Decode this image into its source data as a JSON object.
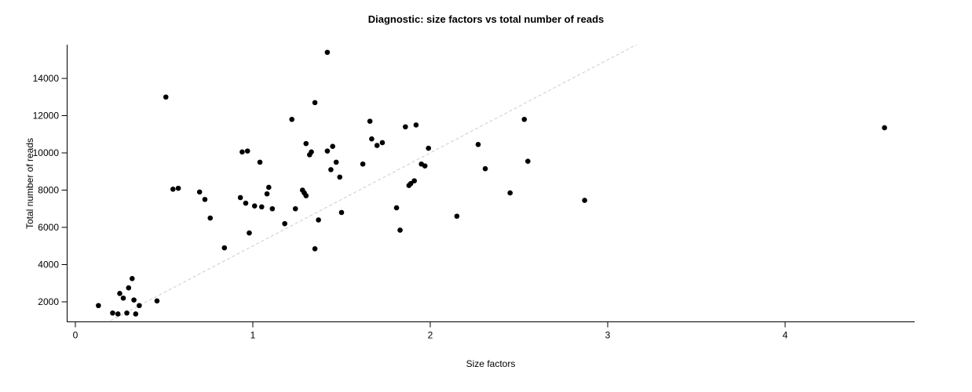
{
  "chart_data": {
    "type": "scatter",
    "title": "Diagnostic: size factors vs total number of reads",
    "xlabel": "Size factors",
    "ylabel": "Total number of reads",
    "x_ticks": [
      0,
      1,
      2,
      3,
      4
    ],
    "y_ticks": [
      2000,
      4000,
      6000,
      8000,
      10000,
      12000,
      14000
    ],
    "xlim": [
      -0.05,
      4.73
    ],
    "ylim": [
      950,
      15810
    ],
    "grid": false,
    "legend": "none",
    "point_color": "#000000",
    "axis_color": "#000000",
    "reference_line": {
      "slope": 5000,
      "intercept": 0,
      "style": "dashed",
      "color": "#cccccc"
    },
    "points": [
      [
        0.13,
        1800
      ],
      [
        0.21,
        1400
      ],
      [
        0.24,
        1350
      ],
      [
        0.25,
        2450
      ],
      [
        0.27,
        2200
      ],
      [
        0.29,
        1400
      ],
      [
        0.3,
        2750
      ],
      [
        0.32,
        3250
      ],
      [
        0.33,
        2100
      ],
      [
        0.34,
        1350
      ],
      [
        0.36,
        1800
      ],
      [
        0.46,
        2050
      ],
      [
        0.51,
        13000
      ],
      [
        0.55,
        8050
      ],
      [
        0.58,
        8100
      ],
      [
        0.7,
        7900
      ],
      [
        0.73,
        7500
      ],
      [
        0.76,
        6500
      ],
      [
        0.84,
        4900
      ],
      [
        0.93,
        7600
      ],
      [
        0.94,
        10050
      ],
      [
        0.97,
        10100
      ],
      [
        0.96,
        7300
      ],
      [
        0.98,
        5700
      ],
      [
        1.01,
        7150
      ],
      [
        1.04,
        9500
      ],
      [
        1.05,
        7100
      ],
      [
        1.08,
        7800
      ],
      [
        1.09,
        8150
      ],
      [
        1.11,
        7000
      ],
      [
        1.18,
        6200
      ],
      [
        1.22,
        11800
      ],
      [
        1.24,
        7000
      ],
      [
        1.28,
        8000
      ],
      [
        1.29,
        7850
      ],
      [
        1.3,
        7700
      ],
      [
        1.3,
        10500
      ],
      [
        1.32,
        9900
      ],
      [
        1.33,
        10050
      ],
      [
        1.35,
        12700
      ],
      [
        1.35,
        4850
      ],
      [
        1.37,
        6400
      ],
      [
        1.42,
        15400
      ],
      [
        1.42,
        10100
      ],
      [
        1.44,
        9100
      ],
      [
        1.45,
        10350
      ],
      [
        1.47,
        9500
      ],
      [
        1.49,
        8700
      ],
      [
        1.5,
        6800
      ],
      [
        1.62,
        9400
      ],
      [
        1.66,
        11700
      ],
      [
        1.67,
        10750
      ],
      [
        1.7,
        10400
      ],
      [
        1.73,
        10550
      ],
      [
        1.81,
        7050
      ],
      [
        1.83,
        5850
      ],
      [
        1.86,
        11400
      ],
      [
        1.88,
        8250
      ],
      [
        1.89,
        8350
      ],
      [
        1.91,
        8500
      ],
      [
        1.92,
        11500
      ],
      [
        1.95,
        9400
      ],
      [
        1.97,
        9300
      ],
      [
        1.99,
        10250
      ],
      [
        2.15,
        6600
      ],
      [
        2.27,
        10450
      ],
      [
        2.31,
        9150
      ],
      [
        2.45,
        7850
      ],
      [
        2.53,
        11800
      ],
      [
        2.55,
        9550
      ],
      [
        2.87,
        7450
      ],
      [
        4.56,
        11350
      ]
    ]
  }
}
